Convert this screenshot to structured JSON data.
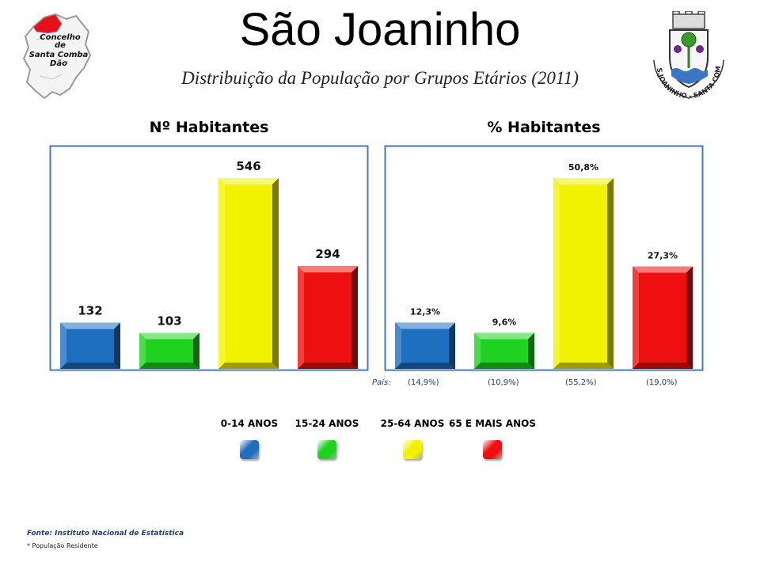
{
  "header": {
    "title": "São Joaninho",
    "subtitle": "Distribuição da População por Grupos Etários (2011)"
  },
  "logo_left": {
    "line1": "Concelho",
    "line2": "de",
    "line3": "Santa Comba",
    "line4": "Dão"
  },
  "logo_right": {
    "ring_text": "S.JOANINHO - SANTA COMBA DÃO"
  },
  "colors": {
    "frame": "#4a78b8",
    "c0_14": "#1f6fc0",
    "c15_24": "#1fd21f",
    "c25_64": "#f2f200",
    "c65": "#ee1010"
  },
  "chart_data": [
    {
      "type": "bar",
      "title": "Nº Habitantes",
      "categories": [
        "0-14 ANOS",
        "15-24 ANOS",
        "25-64 ANOS",
        "65 E MAIS ANOS"
      ],
      "values": [
        132,
        103,
        546,
        294
      ],
      "value_labels": [
        "132",
        "103",
        "546",
        "294"
      ],
      "grid": false,
      "legend": "bottom"
    },
    {
      "type": "bar",
      "title": "% Habitantes",
      "categories": [
        "0-14 ANOS",
        "15-24 ANOS",
        "25-64 ANOS",
        "65 E MAIS ANOS"
      ],
      "values": [
        12.3,
        9.6,
        50.8,
        27.3
      ],
      "value_labels": [
        "12,3%",
        "9,6%",
        "50,8%",
        "27,3%"
      ],
      "country_label": "País:",
      "country_values": [
        14.9,
        10.9,
        55.2,
        19.0
      ],
      "country_value_labels": [
        "(14,9%)",
        "(10,9%)",
        "(55,2%)",
        "(19,0%)"
      ],
      "grid": false,
      "legend": "bottom"
    }
  ],
  "legend": {
    "items": [
      {
        "label": "0-14 ANOS",
        "color": "#1f6fc0"
      },
      {
        "label": "15-24 ANOS",
        "color": "#1fd21f"
      },
      {
        "label": "25-64 ANOS",
        "color": "#f2f200"
      },
      {
        "label": "65 E MAIS ANOS",
        "color": "#ee1010"
      }
    ]
  },
  "footer": {
    "source": "Fonte: Instituto Nacional de Estatística",
    "note": "* População Residente"
  }
}
